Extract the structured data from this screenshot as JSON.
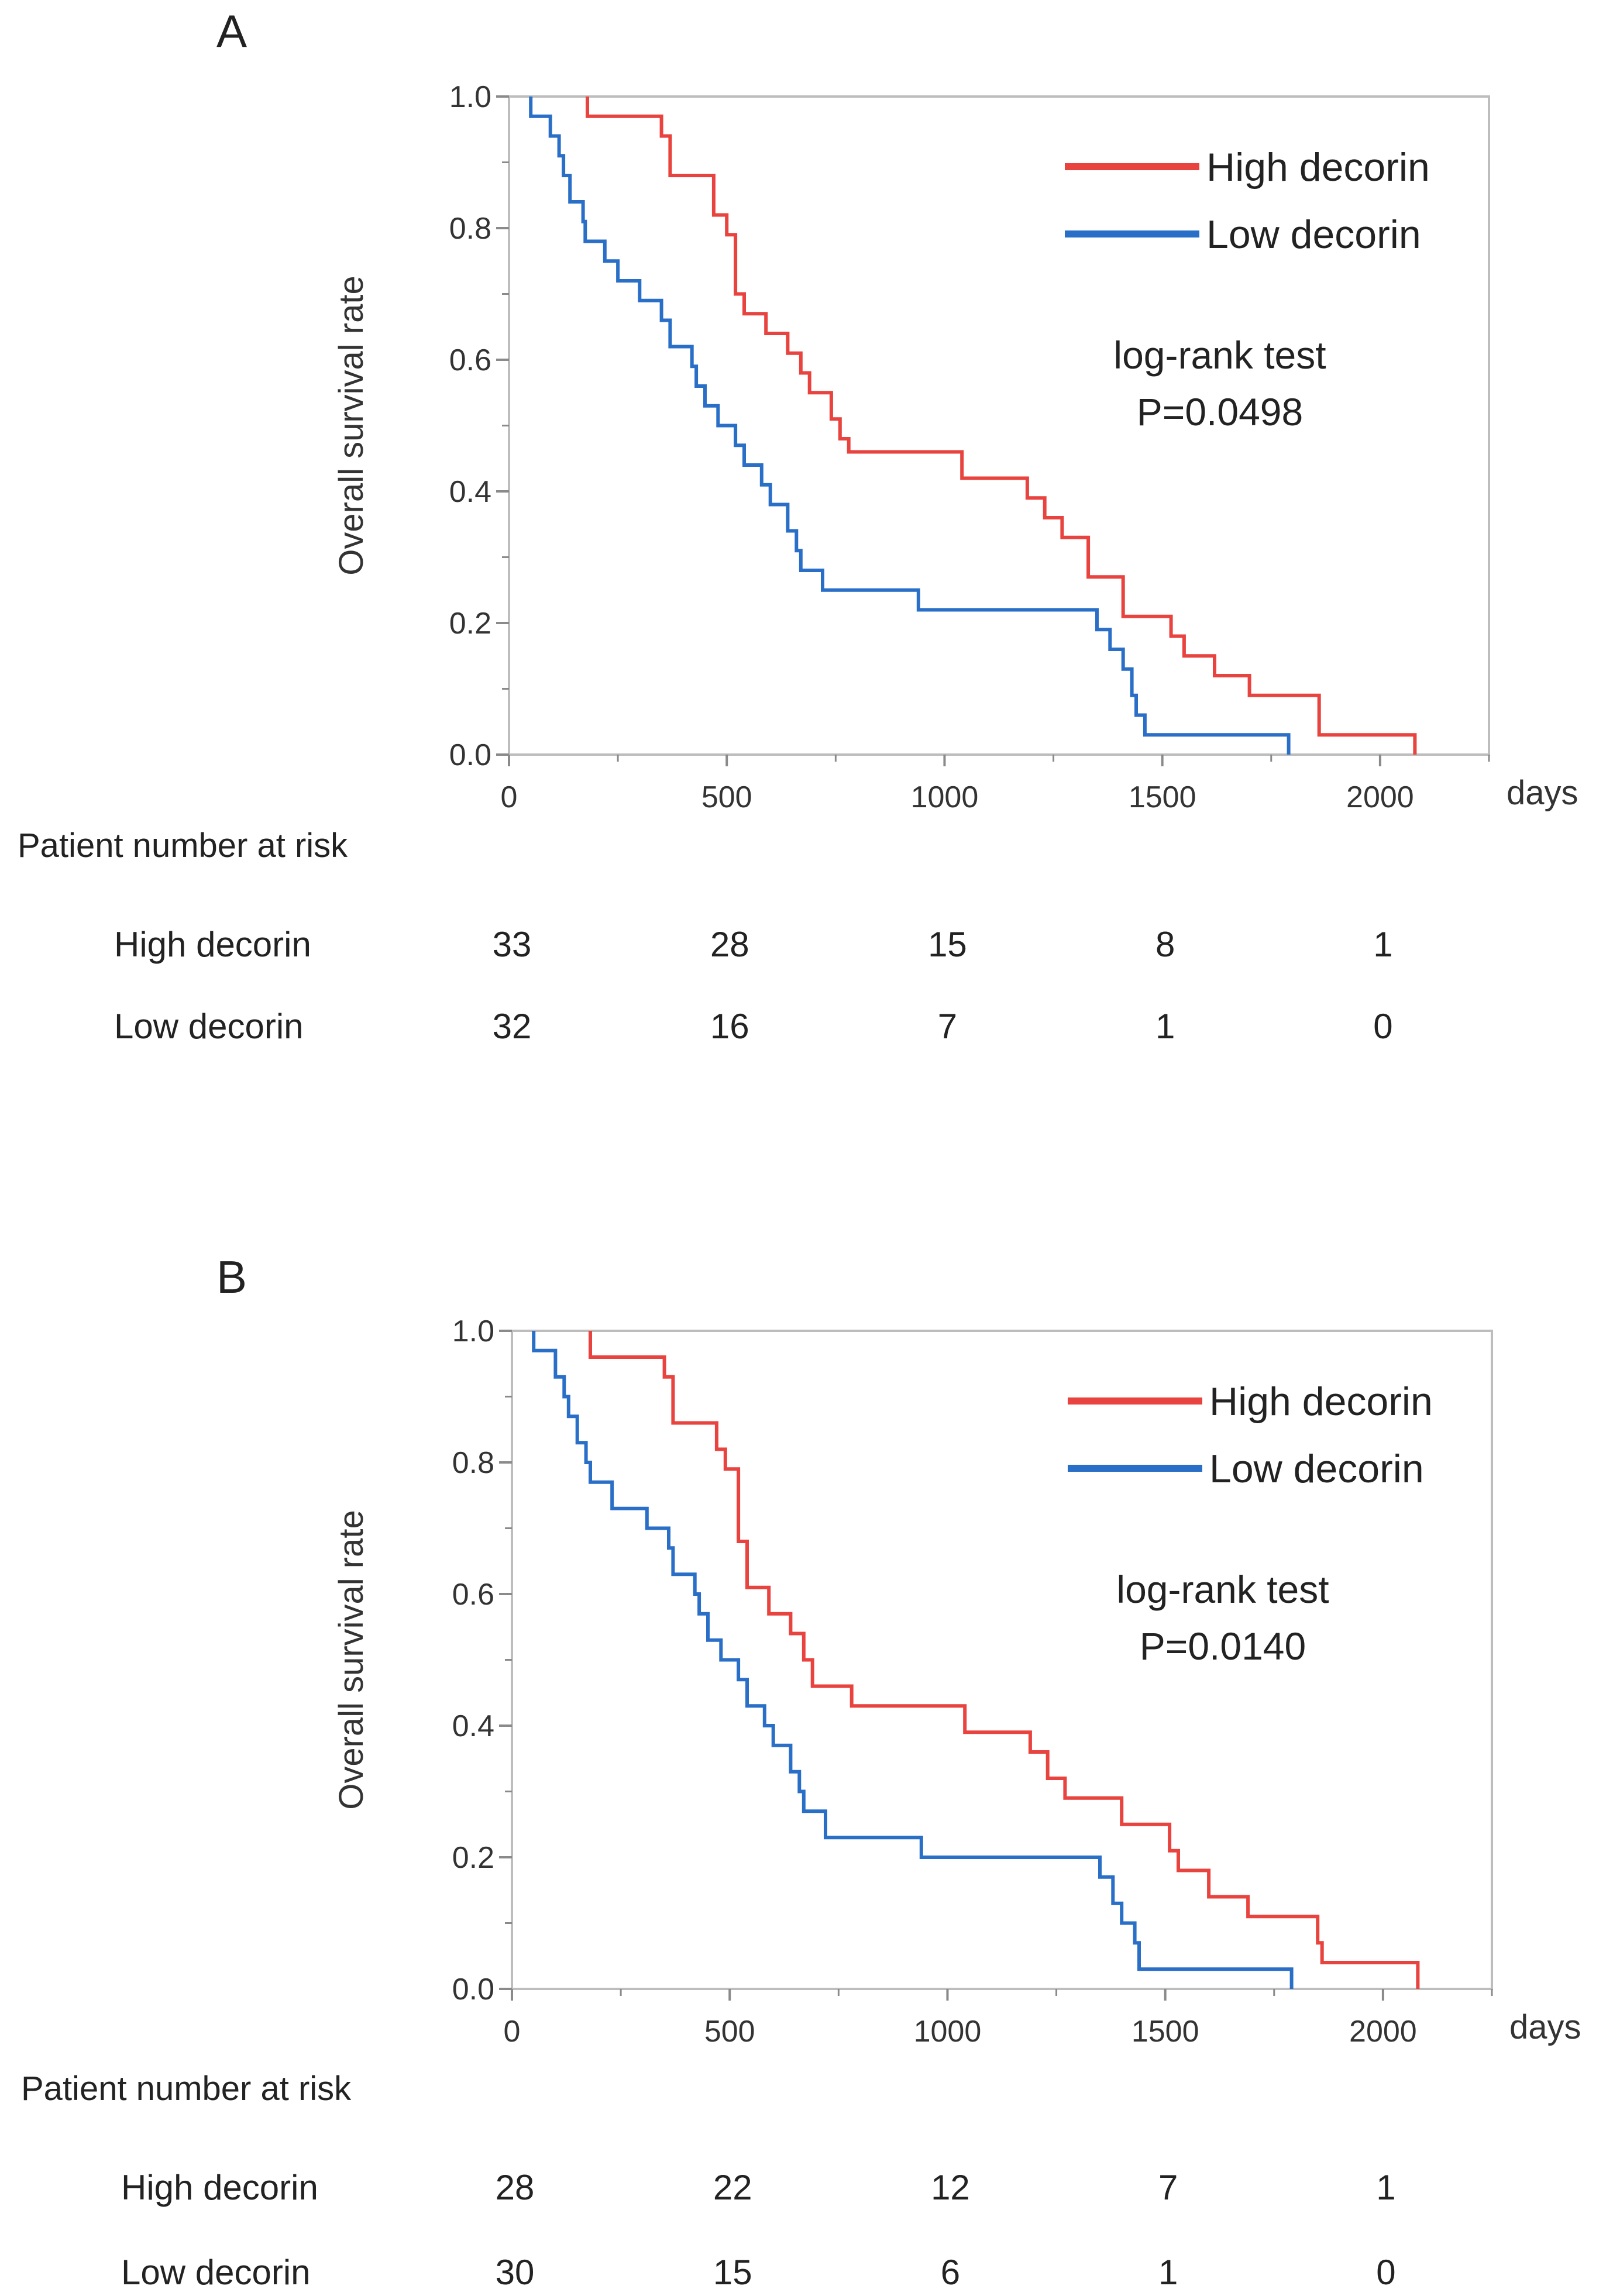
{
  "chart_data": [
    {
      "panel": "A",
      "type": "line",
      "subtype": "kaplan-meier",
      "xlabel": "days",
      "ylabel": "Overall  survival  rate",
      "xlim": [
        0,
        2250
      ],
      "ylim": [
        0,
        1.0
      ],
      "xticks": [
        0,
        500,
        1000,
        1500,
        2000
      ],
      "yticks": [
        "0.0",
        "0.2",
        "0.4",
        "0.6",
        "0.8",
        "1.0"
      ],
      "series": [
        {
          "name": "High decorin",
          "color": "#e8433e",
          "points": [
            [
              180,
              1.0
            ],
            [
              180,
              0.97
            ],
            [
              350,
              0.97
            ],
            [
              350,
              0.94
            ],
            [
              370,
              0.94
            ],
            [
              370,
              0.88
            ],
            [
              470,
              0.88
            ],
            [
              470,
              0.82
            ],
            [
              500,
              0.82
            ],
            [
              500,
              0.79
            ],
            [
              520,
              0.79
            ],
            [
              520,
              0.7
            ],
            [
              540,
              0.7
            ],
            [
              540,
              0.67
            ],
            [
              590,
              0.67
            ],
            [
              590,
              0.64
            ],
            [
              640,
              0.64
            ],
            [
              640,
              0.61
            ],
            [
              670,
              0.61
            ],
            [
              670,
              0.58
            ],
            [
              690,
              0.58
            ],
            [
              690,
              0.55
            ],
            [
              740,
              0.55
            ],
            [
              740,
              0.51
            ],
            [
              760,
              0.51
            ],
            [
              760,
              0.48
            ],
            [
              780,
              0.48
            ],
            [
              780,
              0.46
            ],
            [
              1040,
              0.46
            ],
            [
              1040,
              0.42
            ],
            [
              1190,
              0.42
            ],
            [
              1190,
              0.39
            ],
            [
              1230,
              0.39
            ],
            [
              1230,
              0.36
            ],
            [
              1270,
              0.36
            ],
            [
              1270,
              0.33
            ],
            [
              1330,
              0.33
            ],
            [
              1330,
              0.27
            ],
            [
              1410,
              0.27
            ],
            [
              1410,
              0.21
            ],
            [
              1520,
              0.21
            ],
            [
              1520,
              0.18
            ],
            [
              1550,
              0.18
            ],
            [
              1550,
              0.15
            ],
            [
              1620,
              0.15
            ],
            [
              1620,
              0.12
            ],
            [
              1700,
              0.12
            ],
            [
              1700,
              0.09
            ],
            [
              1860,
              0.09
            ],
            [
              1860,
              0.03
            ],
            [
              2080,
              0.03
            ],
            [
              2080,
              0.0
            ]
          ]
        },
        {
          "name": "Low decorin",
          "color": "#2a6fc7",
          "points": [
            [
              50,
              1.0
            ],
            [
              50,
              0.97
            ],
            [
              95,
              0.97
            ],
            [
              95,
              0.94
            ],
            [
              115,
              0.94
            ],
            [
              115,
              0.91
            ],
            [
              125,
              0.91
            ],
            [
              125,
              0.88
            ],
            [
              140,
              0.88
            ],
            [
              140,
              0.84
            ],
            [
              170,
              0.84
            ],
            [
              170,
              0.81
            ],
            [
              175,
              0.81
            ],
            [
              175,
              0.78
            ],
            [
              220,
              0.78
            ],
            [
              220,
              0.75
            ],
            [
              250,
              0.75
            ],
            [
              250,
              0.72
            ],
            [
              300,
              0.72
            ],
            [
              300,
              0.69
            ],
            [
              350,
              0.69
            ],
            [
              350,
              0.66
            ],
            [
              370,
              0.66
            ],
            [
              370,
              0.62
            ],
            [
              420,
              0.62
            ],
            [
              420,
              0.59
            ],
            [
              430,
              0.59
            ],
            [
              430,
              0.56
            ],
            [
              450,
              0.56
            ],
            [
              450,
              0.53
            ],
            [
              480,
              0.53
            ],
            [
              480,
              0.5
            ],
            [
              520,
              0.5
            ],
            [
              520,
              0.47
            ],
            [
              540,
              0.47
            ],
            [
              540,
              0.44
            ],
            [
              580,
              0.44
            ],
            [
              580,
              0.41
            ],
            [
              600,
              0.41
            ],
            [
              600,
              0.38
            ],
            [
              640,
              0.38
            ],
            [
              640,
              0.34
            ],
            [
              660,
              0.34
            ],
            [
              660,
              0.31
            ],
            [
              670,
              0.31
            ],
            [
              670,
              0.28
            ],
            [
              720,
              0.28
            ],
            [
              720,
              0.25
            ],
            [
              940,
              0.25
            ],
            [
              940,
              0.22
            ],
            [
              1350,
              0.22
            ],
            [
              1350,
              0.19
            ],
            [
              1380,
              0.19
            ],
            [
              1380,
              0.16
            ],
            [
              1410,
              0.16
            ],
            [
              1410,
              0.13
            ],
            [
              1430,
              0.13
            ],
            [
              1430,
              0.09
            ],
            [
              1440,
              0.09
            ],
            [
              1440,
              0.06
            ],
            [
              1460,
              0.06
            ],
            [
              1460,
              0.03
            ],
            [
              1790,
              0.03
            ],
            [
              1790,
              0.0
            ]
          ]
        }
      ],
      "legend": [
        "High decorin",
        "Low decorin"
      ],
      "annotation": [
        "log-rank test",
        "P=0.0498"
      ],
      "risk_table": {
        "header": "Patient number at risk",
        "columns": [
          0,
          500,
          1000,
          1500,
          2000
        ],
        "rows": [
          {
            "label": "High decorin",
            "values": [
              "33",
              "28",
              "15",
              "8",
              "1"
            ]
          },
          {
            "label": "Low decorin",
            "values": [
              "32",
              "16",
              "7",
              "1",
              "0"
            ]
          }
        ]
      }
    },
    {
      "panel": "B",
      "type": "line",
      "subtype": "kaplan-meier",
      "xlabel": "days",
      "ylabel": "Overall  survival  rate",
      "xlim": [
        0,
        2250
      ],
      "ylim": [
        0,
        1.0
      ],
      "xticks": [
        0,
        500,
        1000,
        1500,
        2000
      ],
      "yticks": [
        "0.0",
        "0.2",
        "0.4",
        "0.6",
        "0.8",
        "1.0"
      ],
      "series": [
        {
          "name": "High decorin",
          "color": "#e8433e",
          "points": [
            [
              180,
              1.0
            ],
            [
              180,
              0.96
            ],
            [
              350,
              0.96
            ],
            [
              350,
              0.93
            ],
            [
              370,
              0.93
            ],
            [
              370,
              0.86
            ],
            [
              470,
              0.86
            ],
            [
              470,
              0.82
            ],
            [
              490,
              0.82
            ],
            [
              490,
              0.79
            ],
            [
              520,
              0.79
            ],
            [
              520,
              0.68
            ],
            [
              540,
              0.68
            ],
            [
              540,
              0.61
            ],
            [
              590,
              0.61
            ],
            [
              590,
              0.57
            ],
            [
              640,
              0.57
            ],
            [
              640,
              0.54
            ],
            [
              670,
              0.54
            ],
            [
              670,
              0.5
            ],
            [
              690,
              0.5
            ],
            [
              690,
              0.46
            ],
            [
              780,
              0.46
            ],
            [
              780,
              0.43
            ],
            [
              1040,
              0.43
            ],
            [
              1040,
              0.39
            ],
            [
              1190,
              0.39
            ],
            [
              1190,
              0.36
            ],
            [
              1230,
              0.36
            ],
            [
              1230,
              0.32
            ],
            [
              1270,
              0.32
            ],
            [
              1270,
              0.29
            ],
            [
              1400,
              0.29
            ],
            [
              1400,
              0.25
            ],
            [
              1510,
              0.25
            ],
            [
              1510,
              0.21
            ],
            [
              1530,
              0.21
            ],
            [
              1530,
              0.18
            ],
            [
              1600,
              0.18
            ],
            [
              1600,
              0.14
            ],
            [
              1690,
              0.14
            ],
            [
              1690,
              0.11
            ],
            [
              1850,
              0.11
            ],
            [
              1850,
              0.07
            ],
            [
              1860,
              0.07
            ],
            [
              1860,
              0.04
            ],
            [
              2080,
              0.04
            ],
            [
              2080,
              0.0
            ]
          ]
        },
        {
          "name": "Low decorin",
          "color": "#2a6fc7",
          "points": [
            [
              50,
              1.0
            ],
            [
              50,
              0.97
            ],
            [
              100,
              0.97
            ],
            [
              100,
              0.93
            ],
            [
              120,
              0.93
            ],
            [
              120,
              0.9
            ],
            [
              130,
              0.9
            ],
            [
              130,
              0.87
            ],
            [
              150,
              0.87
            ],
            [
              150,
              0.83
            ],
            [
              170,
              0.83
            ],
            [
              170,
              0.8
            ],
            [
              180,
              0.8
            ],
            [
              180,
              0.77
            ],
            [
              230,
              0.77
            ],
            [
              230,
              0.73
            ],
            [
              310,
              0.73
            ],
            [
              310,
              0.7
            ],
            [
              360,
              0.7
            ],
            [
              360,
              0.67
            ],
            [
              370,
              0.67
            ],
            [
              370,
              0.63
            ],
            [
              420,
              0.63
            ],
            [
              420,
              0.6
            ],
            [
              430,
              0.6
            ],
            [
              430,
              0.57
            ],
            [
              450,
              0.57
            ],
            [
              450,
              0.53
            ],
            [
              480,
              0.53
            ],
            [
              480,
              0.5
            ],
            [
              520,
              0.5
            ],
            [
              520,
              0.47
            ],
            [
              540,
              0.47
            ],
            [
              540,
              0.43
            ],
            [
              580,
              0.43
            ],
            [
              580,
              0.4
            ],
            [
              600,
              0.4
            ],
            [
              600,
              0.37
            ],
            [
              640,
              0.37
            ],
            [
              640,
              0.33
            ],
            [
              660,
              0.33
            ],
            [
              660,
              0.3
            ],
            [
              670,
              0.3
            ],
            [
              670,
              0.27
            ],
            [
              720,
              0.27
            ],
            [
              720,
              0.23
            ],
            [
              940,
              0.23
            ],
            [
              940,
              0.2
            ],
            [
              1350,
              0.2
            ],
            [
              1350,
              0.17
            ],
            [
              1380,
              0.17
            ],
            [
              1380,
              0.13
            ],
            [
              1400,
              0.13
            ],
            [
              1400,
              0.1
            ],
            [
              1430,
              0.1
            ],
            [
              1430,
              0.07
            ],
            [
              1440,
              0.07
            ],
            [
              1440,
              0.03
            ],
            [
              1790,
              0.03
            ],
            [
              1790,
              0.0
            ]
          ]
        }
      ],
      "legend": [
        "High decorin",
        "Low decorin"
      ],
      "annotation": [
        "log-rank test",
        "P=0.0140"
      ],
      "risk_table": {
        "header": "Patient number at risk",
        "columns": [
          0,
          500,
          1000,
          1500,
          2000
        ],
        "rows": [
          {
            "label": "High decorin",
            "values": [
              "28",
              "22",
              "12",
              "7",
              "1"
            ]
          },
          {
            "label": "Low decorin",
            "values": [
              "30",
              "15",
              "6",
              "1",
              "0"
            ]
          }
        ]
      }
    }
  ]
}
